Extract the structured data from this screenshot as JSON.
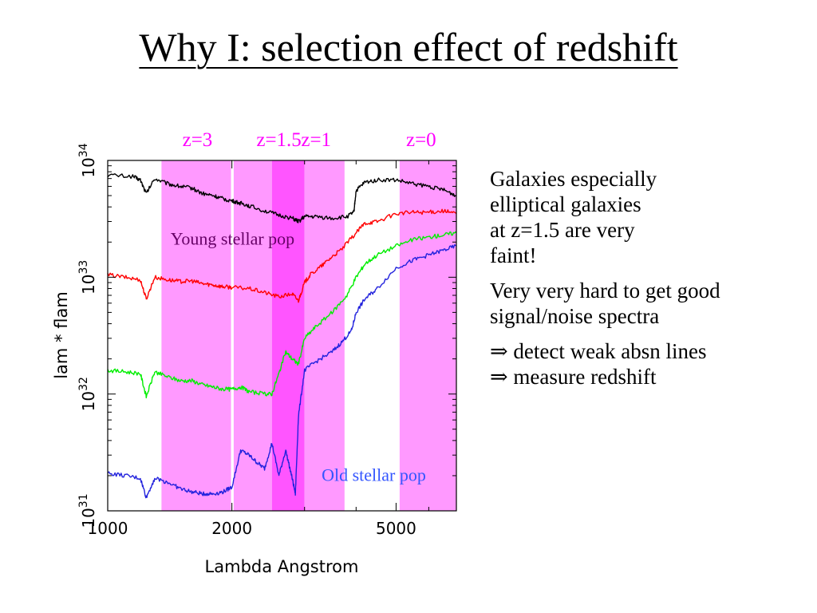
{
  "slide": {
    "title": "Why I: selection effect of redshift",
    "paragraphs": [
      [
        "Galaxies especially",
        "elliptical galaxies",
        "at z=1.5 are very",
        "faint!"
      ],
      [
        "Very very hard to get good",
        "signal/noise spectra"
      ]
    ],
    "implications": [
      {
        "arrow": "⇒",
        "text": " detect weak absn lines"
      },
      {
        "arrow": "⇒",
        "text": " measure redshift"
      }
    ]
  },
  "chart_data": {
    "type": "line",
    "xlabel": "Lambda Angstrom",
    "ylabel": "lam * flam",
    "xscale": "log",
    "yscale": "log",
    "xlim": [
      1000,
      7000
    ],
    "ylim": [
      1e+31,
      1e+34
    ],
    "x_ticks": [
      1000,
      2000,
      5000
    ],
    "x_tick_labels": [
      "1000",
      "2000",
      "5000"
    ],
    "y_ticks": [
      {
        "value": 1e+31,
        "base": "10",
        "exp": "31"
      },
      {
        "value": 1e+32,
        "base": "10",
        "exp": "32"
      },
      {
        "value": 1e+33,
        "base": "10",
        "exp": "33"
      },
      {
        "value": 1e+34,
        "base": "10",
        "exp": "34"
      }
    ],
    "bands": [
      {
        "from": 1350,
        "to": 1990,
        "color": "#ff99ff"
      },
      {
        "from": 2020,
        "to": 2500,
        "color": "#ff99ff"
      },
      {
        "from": 2500,
        "to": 3000,
        "color": "#ff55ff"
      },
      {
        "from": 3000,
        "to": 3750,
        "color": "#ff99ff"
      },
      {
        "from": 5100,
        "to": 7000,
        "color": "#ff99ff"
      }
    ],
    "redshift_labels": [
      {
        "text": "z=3",
        "x": 1650
      },
      {
        "text": "z=1.5",
        "x": 2600
      },
      {
        "text": "z=1",
        "x": 3200
      },
      {
        "text": "z=0",
        "x": 5750
      }
    ],
    "redshift_label_color": "#ff00ff",
    "annotations": [
      {
        "text": "Young stellar pop",
        "x": 1420,
        "y": 1.9e+33,
        "color": "#660066"
      },
      {
        "text": "Old stellar pop",
        "x": 3300,
        "y": 1.8e+31,
        "color": "#3355ff"
      }
    ],
    "series": [
      {
        "color": "#000000",
        "x": [
          1000,
          1150,
          1200,
          1240,
          1300,
          1400,
          1500,
          1600,
          1700,
          1800,
          1900,
          2000,
          2100,
          2200,
          2400,
          2600,
          2800,
          2900,
          3000,
          3200,
          3500,
          3800,
          3950,
          4000,
          4200,
          4500,
          5000,
          5500,
          6000,
          6500,
          7000
        ],
        "y": [
          7.5e+33,
          7.3e+33,
          6.8e+33,
          5.2e+33,
          7e+33,
          6.3e+33,
          6e+33,
          5.8e+33,
          5.2e+33,
          5e+33,
          4.7e+33,
          4.5e+33,
          4.3e+33,
          4.1e+33,
          3.7e+33,
          3.4e+33,
          3.2e+33,
          3e+33,
          3.3e+33,
          3.3e+33,
          3.2e+33,
          3.3e+33,
          3.6e+33,
          5.5e+33,
          6.5e+33,
          6.8e+33,
          6.8e+33,
          6.3e+33,
          6e+33,
          5.6e+33,
          5e+33
        ]
      },
      {
        "color": "#ff0000",
        "x": [
          1000,
          1100,
          1200,
          1240,
          1300,
          1400,
          1500,
          1600,
          1700,
          1800,
          1900,
          2000,
          2200,
          2400,
          2600,
          2800,
          2900,
          3000,
          3100,
          3300,
          3500,
          3700,
          4000,
          4200,
          4500,
          5000,
          5500,
          6000,
          6500,
          7000
        ],
        "y": [
          1.05e+33,
          1e+33,
          9.5e+32,
          6.5e+32,
          1e+33,
          9.5e+32,
          9.2e+32,
          9.3e+32,
          8.8e+32,
          8.6e+32,
          8.3e+32,
          8.2e+32,
          8e+32,
          7.4e+32,
          6.8e+32,
          7.2e+32,
          6.3e+32,
          9e+32,
          1.05e+33,
          1.25e+33,
          1.5e+33,
          1.75e+33,
          2.4e+33,
          2.9e+33,
          3e+33,
          3.5e+33,
          3.6e+33,
          3.6e+33,
          3.7e+33,
          3.5e+33
        ]
      },
      {
        "color": "#00ee00",
        "x": [
          1000,
          1100,
          1200,
          1240,
          1300,
          1400,
          1500,
          1600,
          1700,
          1800,
          1900,
          2000,
          2100,
          2200,
          2400,
          2500,
          2600,
          2700,
          2800,
          2900,
          3000,
          3200,
          3500,
          3800,
          4000,
          4200,
          4500,
          5000,
          5500,
          6000,
          6500,
          7000
        ],
        "y": [
          1.6e+32,
          1.55e+32,
          1.5e+32,
          9.5e+31,
          1.55e+32,
          1.4e+32,
          1.3e+32,
          1.3e+32,
          1.2e+32,
          1.15e+32,
          1.1e+32,
          1.1e+32,
          1.15e+32,
          1.05e+32,
          1e+32,
          1e+32,
          1.5e+32,
          2.3e+32,
          2e+32,
          1.8e+32,
          3e+32,
          3.8e+32,
          5e+32,
          7e+32,
          1e+33,
          1.3e+33,
          1.55e+33,
          1.85e+33,
          2.1e+33,
          2.2e+33,
          2.3e+33,
          2.4e+33
        ]
      },
      {
        "color": "#2222dd",
        "x": [
          1000,
          1100,
          1200,
          1240,
          1300,
          1400,
          1500,
          1600,
          1700,
          1800,
          1900,
          2000,
          2100,
          2200,
          2300,
          2400,
          2500,
          2600,
          2700,
          2800,
          2850,
          2900,
          3000,
          3200,
          3500,
          3700,
          3900,
          4000,
          4200,
          4500,
          5000,
          5500,
          6000,
          6500,
          7000
        ],
        "y": [
          2.1e+31,
          2e+31,
          1.9e+31,
          1.3e+31,
          1.9e+31,
          1.75e+31,
          1.55e+31,
          1.45e+31,
          1.4e+31,
          1.4e+31,
          1.45e+31,
          1.6e+31,
          3.3e+31,
          3e+31,
          2.6e+31,
          2.3e+31,
          3.8e+31,
          2e+31,
          3.3e+31,
          1.9e+31,
          1.4e+31,
          6.5e+31,
          1.6e+32,
          1.9e+32,
          2.3e+32,
          2.8e+32,
          3.5e+32,
          5e+32,
          6.5e+32,
          8e+32,
          1.2e+33,
          1.4e+33,
          1.55e+33,
          1.7e+33,
          1.85e+33
        ]
      }
    ]
  }
}
